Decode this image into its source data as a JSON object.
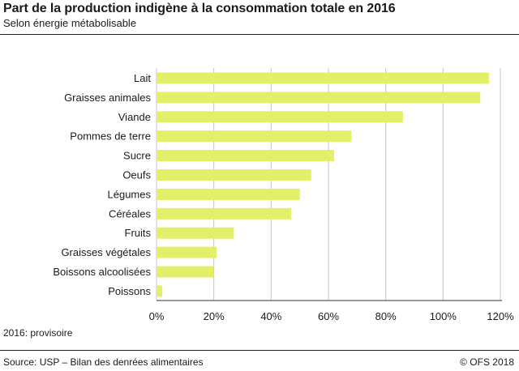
{
  "header": {
    "title": "Part de la production indigène à la consommation totale en 2016",
    "subtitle": "Selon énergie métabolisable"
  },
  "footer": {
    "note": "2016: provisoire",
    "source": "Source: USP – Bilan des denrées alimentaires",
    "credit": "© OFS  2018"
  },
  "chart_data": {
    "type": "bar",
    "orientation": "horizontal",
    "title": "Part de la production indigène à la consommation totale en 2016",
    "subtitle": "Selon énergie métabolisable",
    "xlabel": "",
    "ylabel": "",
    "categories": [
      "Lait",
      "Graisses animales",
      "Viande",
      "Pommes de terre",
      "Sucre",
      "Oeufs",
      "Légumes",
      "Céréales",
      "Fruits",
      "Graisses végétales",
      "Boissons alcoolisées",
      "Poissons"
    ],
    "values": [
      116,
      113,
      86,
      68,
      62,
      54,
      50,
      47,
      27,
      21,
      20,
      2
    ],
    "unit": "%",
    "xlim": [
      0,
      120
    ],
    "xticks": [
      0,
      20,
      40,
      60,
      80,
      100,
      120
    ],
    "xtick_labels": [
      "0%",
      "20%",
      "40%",
      "60%",
      "80%",
      "100%",
      "120%"
    ],
    "grid": true,
    "bar_color": "#e3ef68",
    "grid_color": "#c4c4c4",
    "axis_color": "#333333"
  }
}
